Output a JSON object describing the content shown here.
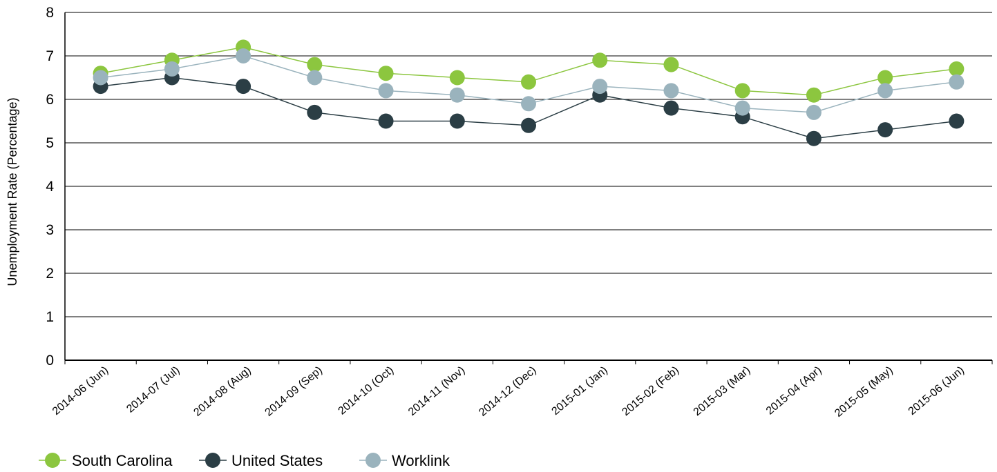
{
  "chart_data": {
    "type": "line",
    "title": "",
    "xlabel": "",
    "ylabel": "Unemployment Rate (Percentage)",
    "ylim": [
      0,
      8
    ],
    "yticks": [
      0,
      1,
      2,
      3,
      4,
      5,
      6,
      7,
      8
    ],
    "grid": true,
    "legend_position": "bottom-left",
    "categories": [
      "2014-06 (Jun)",
      "2014-07 (Jul)",
      "2014-08 (Aug)",
      "2014-09 (Sep)",
      "2014-10 (Oct)",
      "2014-11 (Nov)",
      "2014-12 (Dec)",
      "2015-01 (Jan)",
      "2015-02 (Feb)",
      "2015-03 (Mar)",
      "2015-04 (Apr)",
      "2015-05 (May)",
      "2015-06 (Jun)"
    ],
    "series": [
      {
        "name": "South Carolina",
        "color": "#8cc63f",
        "values": [
          6.6,
          6.9,
          7.2,
          6.8,
          6.6,
          6.5,
          6.4,
          6.9,
          6.8,
          6.2,
          6.1,
          6.5,
          6.7
        ]
      },
      {
        "name": "United States",
        "color": "#2b3e45",
        "values": [
          6.3,
          6.5,
          6.3,
          5.7,
          5.5,
          5.5,
          5.4,
          6.1,
          5.8,
          5.6,
          5.1,
          5.3,
          5.5
        ]
      },
      {
        "name": "Worklink",
        "color": "#9ab3bd",
        "values": [
          6.5,
          6.7,
          7.0,
          6.5,
          6.2,
          6.1,
          5.9,
          6.3,
          6.2,
          5.8,
          5.7,
          6.2,
          6.4
        ]
      }
    ]
  }
}
